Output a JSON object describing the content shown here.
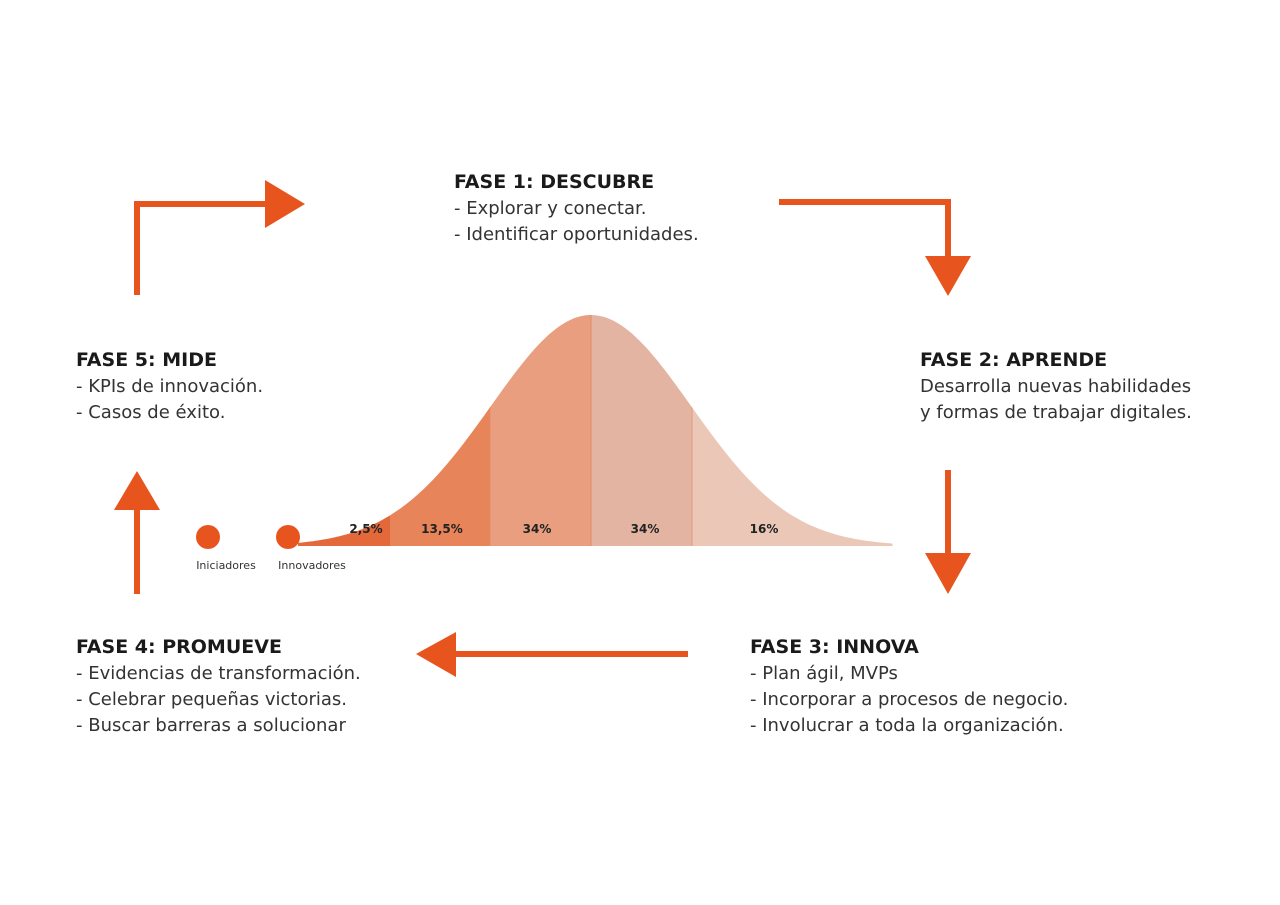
{
  "phases": [
    {
      "title": "FASE 1: DESCUBRE",
      "lines": [
        "- Explorar y conectar.",
        "- Identificar oportunidades."
      ]
    },
    {
      "title": "FASE 2: APRENDE",
      "lines": [
        "Desarrolla nuevas habilidades",
        "y formas de trabajar digitales."
      ]
    },
    {
      "title": "FASE 3: INNOVA",
      "lines": [
        "- Plan ágil, MVPs",
        "- Incorporar a procesos de negocio.",
        "- Involucrar a toda la organización."
      ]
    },
    {
      "title": "FASE 4: PROMUEVE",
      "lines": [
        "- Evidencias de transformación.",
        "- Celebrar pequeñas victorias.",
        "- Buscar barreras a solucionar"
      ]
    },
    {
      "title": "FASE 5: MIDE",
      "lines": [
        "- KPIs de innovación.",
        "- Casos de éxito."
      ]
    }
  ],
  "curve": {
    "segments": [
      "2,5%",
      "13,5%",
      "34%",
      "34%",
      "16%"
    ],
    "markers": [
      "Iniciadores",
      "Innovadores"
    ]
  }
}
